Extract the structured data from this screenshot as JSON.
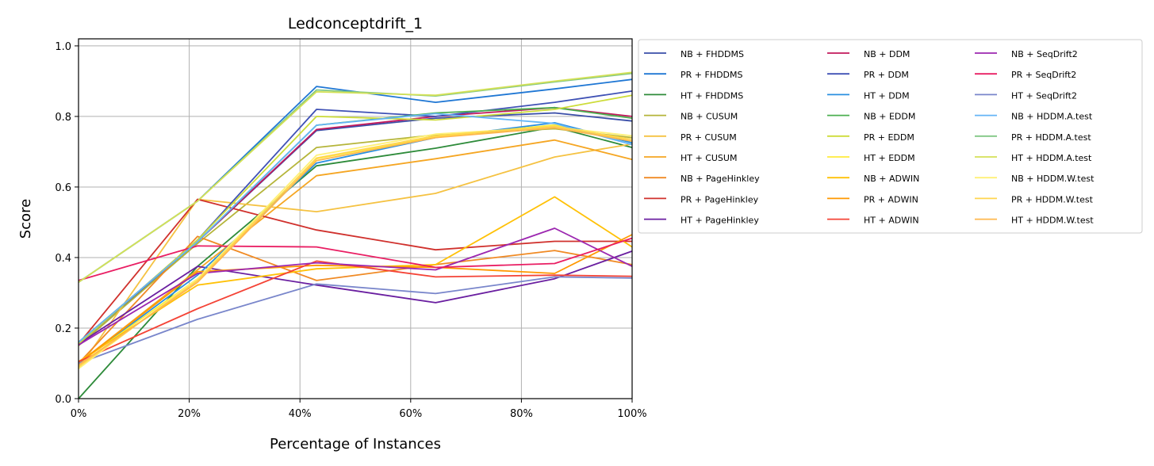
{
  "chart_data": {
    "type": "line",
    "title": "Ledconceptdrift_1",
    "xlabel": "Percentage of Instances",
    "ylabel": "Score",
    "x": [
      0,
      21.5,
      43,
      64.5,
      86,
      100
    ],
    "xlim": [
      0,
      100
    ],
    "ylim": [
      0,
      1.02
    ],
    "xticks": [
      0,
      20,
      40,
      60,
      80,
      100
    ],
    "xtick_labels": [
      "0%",
      "20%",
      "40%",
      "60%",
      "80%",
      "100%"
    ],
    "yticks": [
      0.0,
      0.2,
      0.4,
      0.6,
      0.8,
      1.0
    ],
    "ytick_labels": [
      "0.0",
      "0.2",
      "0.4",
      "0.6",
      "0.8",
      "1.0"
    ],
    "grid": true,
    "legend_position": "outside-right",
    "legend_columns": 3,
    "series": [
      {
        "name": "NB + FHDDMS",
        "color": "#3a4ea8",
        "values": [
          0.155,
          0.445,
          0.76,
          0.795,
          0.81,
          0.787
        ]
      },
      {
        "name": "PR + FHDDMS",
        "color": "#1f77d4",
        "values": [
          0.33,
          0.56,
          0.885,
          0.84,
          0.878,
          0.905
        ]
      },
      {
        "name": "HT + FHDDMS",
        "color": "#2e8b3a",
        "values": [
          0.0,
          0.375,
          0.66,
          0.71,
          0.77,
          0.712
        ]
      },
      {
        "name": "NB + CUSUM",
        "color": "#b5b53a",
        "values": [
          0.15,
          0.44,
          0.712,
          0.748,
          0.765,
          0.74
        ]
      },
      {
        "name": "PR + CUSUM",
        "color": "#f5c242",
        "values": [
          0.085,
          0.565,
          0.53,
          0.582,
          0.685,
          0.722
        ]
      },
      {
        "name": "HT + CUSUM",
        "color": "#f5a623",
        "values": [
          0.1,
          0.365,
          0.632,
          0.68,
          0.733,
          0.678
        ]
      },
      {
        "name": "NB + PageHinkley",
        "color": "#f08a24",
        "values": [
          0.1,
          0.46,
          0.335,
          0.38,
          0.42,
          0.38
        ]
      },
      {
        "name": "PR + PageHinkley",
        "color": "#d0312d",
        "values": [
          0.155,
          0.565,
          0.478,
          0.422,
          0.446,
          0.446
        ]
      },
      {
        "name": "HT + PageHinkley",
        "color": "#6a1fa0",
        "values": [
          0.155,
          0.375,
          0.322,
          0.272,
          0.34,
          0.418
        ]
      },
      {
        "name": "NB + DDM",
        "color": "#c2185b",
        "values": [
          0.16,
          0.445,
          0.763,
          0.8,
          0.825,
          0.8
        ]
      },
      {
        "name": "PR + DDM",
        "color": "#3f51b5",
        "values": [
          0.155,
          0.45,
          0.82,
          0.8,
          0.84,
          0.872
        ]
      },
      {
        "name": "HT + DDM",
        "color": "#2a8fe0",
        "values": [
          0.1,
          0.35,
          0.668,
          0.74,
          0.782,
          0.725
        ]
      },
      {
        "name": "NB + EDDM",
        "color": "#4caf50",
        "values": [
          0.16,
          0.445,
          0.775,
          0.81,
          0.825,
          0.795
        ]
      },
      {
        "name": "PR + EDDM",
        "color": "#cddc39",
        "values": [
          0.155,
          0.45,
          0.8,
          0.79,
          0.82,
          0.86
        ]
      },
      {
        "name": "HT + EDDM",
        "color": "#ffeb3b",
        "values": [
          0.1,
          0.34,
          0.68,
          0.742,
          0.776,
          0.73
        ]
      },
      {
        "name": "NB + ADWIN",
        "color": "#ffc107",
        "values": [
          0.105,
          0.322,
          0.368,
          0.38,
          0.572,
          0.43
        ]
      },
      {
        "name": "PR + ADWIN",
        "color": "#ff9800",
        "values": [
          0.1,
          0.36,
          0.378,
          0.372,
          0.355,
          0.465
        ]
      },
      {
        "name": "HT + ADWIN",
        "color": "#f44336",
        "values": [
          0.105,
          0.255,
          0.39,
          0.345,
          0.35,
          0.347
        ]
      },
      {
        "name": "NB + SeqDrift2",
        "color": "#9c27b0",
        "values": [
          0.152,
          0.355,
          0.385,
          0.365,
          0.483,
          0.375
        ]
      },
      {
        "name": "PR + SeqDrift2",
        "color": "#e91e63",
        "values": [
          0.335,
          0.433,
          0.43,
          0.372,
          0.383,
          0.455
        ]
      },
      {
        "name": "HT + SeqDrift2",
        "color": "#7986cb",
        "values": [
          0.1,
          0.225,
          0.325,
          0.298,
          0.345,
          0.342
        ]
      },
      {
        "name": "NB + HDDM.A.test",
        "color": "#64b5f6",
        "values": [
          0.16,
          0.445,
          0.775,
          0.808,
          0.78,
          0.72
        ]
      },
      {
        "name": "PR + HDDM.A.test",
        "color": "#81c784",
        "values": [
          0.33,
          0.56,
          0.875,
          0.858,
          0.898,
          0.922
        ]
      },
      {
        "name": "HT + HDDM.A.test",
        "color": "#d4e157",
        "values": [
          0.33,
          0.56,
          0.87,
          0.86,
          0.9,
          0.925
        ]
      },
      {
        "name": "NB + HDDM.W.test",
        "color": "#fff176",
        "values": [
          0.085,
          0.34,
          0.69,
          0.75,
          0.77,
          0.745
        ]
      },
      {
        "name": "PR + HDDM.W.test",
        "color": "#ffd54f",
        "values": [
          0.09,
          0.335,
          0.682,
          0.745,
          0.772,
          0.735
        ]
      },
      {
        "name": "HT + HDDM.W.test",
        "color": "#ffb74d",
        "values": [
          0.095,
          0.33,
          0.675,
          0.74,
          0.768,
          0.73
        ]
      }
    ]
  }
}
